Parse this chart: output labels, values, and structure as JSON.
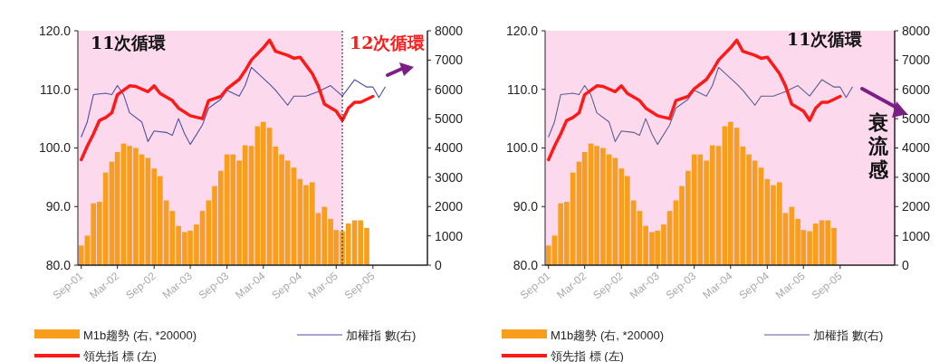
{
  "chart_data": [
    {
      "type": "bar",
      "annotations": [
        "11次循環",
        "12次循環"
      ],
      "xlim": [
        "2001-08-15",
        "2006-06"
      ],
      "xticks": [
        {
          "value": "2001-09",
          "label": "Sep-01"
        },
        {
          "value": "2002-03",
          "label": "Mar-02"
        },
        {
          "value": "2002-09",
          "label": "Sep-02"
        },
        {
          "value": "2003-03",
          "label": "Mar-03"
        },
        {
          "value": "2003-09",
          "label": "Sep-03"
        },
        {
          "value": "2004-03",
          "label": "Mar-04"
        },
        {
          "value": "2004-09",
          "label": "Sep-04"
        },
        {
          "value": "2005-03",
          "label": "Mar-05"
        },
        {
          "value": "2005-09",
          "label": "Sep-05"
        }
      ],
      "ylim": [
        80,
        120
      ],
      "yticks": [
        {
          "value": 80,
          "label": "80.0"
        },
        {
          "value": 90,
          "label": "90.0"
        },
        {
          "value": 100,
          "label": "100.0"
        },
        {
          "value": 110,
          "label": "110.0"
        },
        {
          "value": 120,
          "label": "120.0"
        }
      ],
      "y2lim": [
        0,
        8000
      ],
      "y2ticks": [
        0,
        1000,
        2000,
        3000,
        4000,
        5000,
        6000,
        7000,
        8000
      ],
      "bands": [
        {
          "axis": "x",
          "from": "2001-08-15",
          "to": "2005-04",
          "color": "#fcd9ec"
        }
      ],
      "ref_lines": [
        {
          "axis": "x",
          "value": "2005-04",
          "line_style": "dotted"
        }
      ],
      "legend": "bottom",
      "grid": false,
      "series": [
        {
          "name": "M1b趨勢 (右, *20000)",
          "axis": "y2",
          "color": "#f99e1c",
          "x": [
            "2001-09",
            "2001-10",
            "2001-11",
            "2001-12",
            "2002-01",
            "2002-02",
            "2002-03",
            "2002-04",
            "2002-05",
            "2002-06",
            "2002-07",
            "2002-08",
            "2002-09",
            "2002-10",
            "2002-11",
            "2002-12",
            "2003-01",
            "2003-02",
            "2003-03",
            "2003-04",
            "2003-05",
            "2003-06",
            "2003-07",
            "2003-08",
            "2003-09",
            "2003-10",
            "2003-11",
            "2003-12",
            "2004-01",
            "2004-02",
            "2004-03",
            "2004-04",
            "2004-05",
            "2004-06",
            "2004-07",
            "2004-08",
            "2004-09",
            "2004-10",
            "2004-11",
            "2004-12",
            "2005-01",
            "2005-02",
            "2005-03",
            "2005-04",
            "2005-05",
            "2005-06",
            "2005-07",
            "2005-08"
          ],
          "values": [
            670,
            1010,
            2110,
            2160,
            3160,
            3530,
            3860,
            4150,
            4070,
            4000,
            3780,
            3660,
            3300,
            3040,
            2210,
            1850,
            1340,
            1130,
            1180,
            1390,
            1850,
            2210,
            2700,
            3220,
            3780,
            3780,
            3570,
            4090,
            4070,
            4740,
            4890,
            4690,
            4050,
            3780,
            3570,
            3330,
            2940,
            2730,
            2830,
            1780,
            1990,
            1580,
            1200,
            1160,
            1420,
            1530,
            1530,
            1270
          ]
        },
        {
          "name": "加權指 數(右)",
          "type": "line",
          "axis": "y2",
          "color": "#4b4fa6",
          "x": [
            "2001-09",
            "2001-10",
            "2001-11",
            "2002-01",
            "2002-02",
            "2002-03",
            "2002-04",
            "2002-05",
            "2002-07",
            "2002-08",
            "2002-09",
            "2002-11",
            "2002-12",
            "2003-01",
            "2003-02",
            "2003-03",
            "2003-05",
            "2003-06",
            "2003-08",
            "2003-09",
            "2003-11",
            "2003-12",
            "2004-01",
            "2004-04",
            "2004-05",
            "2004-07",
            "2004-08",
            "2004-10",
            "2004-12",
            "2005-02",
            "2005-04",
            "2005-06",
            "2005-08",
            "2005-09",
            "2005-10",
            "2005-11"
          ],
          "values": [
            4380,
            4890,
            5820,
            5870,
            5820,
            6130,
            5820,
            5200,
            4890,
            4220,
            4580,
            4530,
            4430,
            5000,
            4480,
            4120,
            4790,
            5360,
            5660,
            5970,
            5770,
            6130,
            6750,
            6180,
            5970,
            5460,
            5770,
            5770,
            5920,
            6130,
            5770,
            6330,
            6080,
            6080,
            5720,
            6080
          ]
        },
        {
          "name": "領先指 標 (左)",
          "type": "line",
          "axis": "y",
          "color": "#ff1a1a",
          "x": [
            "2001-09",
            "2001-10",
            "2001-11",
            "2001-12",
            "2002-01",
            "2002-02",
            "2002-03",
            "2002-05",
            "2002-06",
            "2002-08",
            "2002-09",
            "2002-10",
            "2002-12",
            "2003-01",
            "2003-03",
            "2003-05",
            "2003-06",
            "2003-08",
            "2003-09",
            "2003-11",
            "2003-12",
            "2004-01",
            "2004-03",
            "2004-04",
            "2004-05",
            "2004-07",
            "2004-08",
            "2004-09",
            "2004-11",
            "2004-12",
            "2005-01",
            "2005-03",
            "2005-04",
            "2005-05",
            "2005-06",
            "2005-07",
            "2005-09"
          ],
          "values": [
            98.0,
            100.3,
            102.4,
            104.7,
            105.2,
            106.0,
            109.1,
            110.6,
            110.5,
            109.6,
            110.6,
            109.3,
            108.1,
            106.8,
            105.5,
            105.0,
            108.1,
            108.8,
            110.1,
            111.7,
            113.2,
            115.0,
            117.1,
            118.4,
            116.5,
            115.8,
            115.3,
            115.5,
            112.7,
            110.6,
            107.5,
            106.3,
            104.7,
            106.8,
            107.8,
            107.8,
            108.8
          ]
        }
      ]
    },
    {
      "type": "bar",
      "annotations": [
        "11次循環",
        "衰流感"
      ],
      "xlim": [
        "2001-08-15",
        "2006-06"
      ],
      "xticks": [
        {
          "value": "2001-09",
          "label": "Sep-01"
        },
        {
          "value": "2002-03",
          "label": "Mar-02"
        },
        {
          "value": "2002-09",
          "label": "Sep-02"
        },
        {
          "value": "2003-03",
          "label": "Mar-03"
        },
        {
          "value": "2003-09",
          "label": "Sep-03"
        },
        {
          "value": "2004-03",
          "label": "Mar-04"
        },
        {
          "value": "2004-09",
          "label": "Sep-04"
        },
        {
          "value": "2005-03",
          "label": "Mar-05"
        },
        {
          "value": "2005-09",
          "label": "Sep-05"
        }
      ],
      "ylim": [
        80,
        120
      ],
      "yticks": [
        {
          "value": 80,
          "label": "80.0"
        },
        {
          "value": 90,
          "label": "90.0"
        },
        {
          "value": 100,
          "label": "100.0"
        },
        {
          "value": 110,
          "label": "110.0"
        },
        {
          "value": 120,
          "label": "120.0"
        }
      ],
      "y2lim": [
        0,
        8000
      ],
      "y2ticks": [
        0,
        1000,
        2000,
        3000,
        4000,
        5000,
        6000,
        7000,
        8000
      ],
      "bands": [
        {
          "axis": "x",
          "from": "2001-08-15",
          "to": "2006-06",
          "color": "#fcd9ec"
        }
      ],
      "legend": "bottom",
      "grid": false,
      "series": [
        {
          "name": "M1b趨勢 (右, *20000)",
          "axis": "y2",
          "color": "#f99e1c",
          "x": [
            "2001-09",
            "2001-10",
            "2001-11",
            "2001-12",
            "2002-01",
            "2002-02",
            "2002-03",
            "2002-04",
            "2002-05",
            "2002-06",
            "2002-07",
            "2002-08",
            "2002-09",
            "2002-10",
            "2002-11",
            "2002-12",
            "2003-01",
            "2003-02",
            "2003-03",
            "2003-04",
            "2003-05",
            "2003-06",
            "2003-07",
            "2003-08",
            "2003-09",
            "2003-10",
            "2003-11",
            "2003-12",
            "2004-01",
            "2004-02",
            "2004-03",
            "2004-04",
            "2004-05",
            "2004-06",
            "2004-07",
            "2004-08",
            "2004-09",
            "2004-10",
            "2004-11",
            "2004-12",
            "2005-01",
            "2005-02",
            "2005-03",
            "2005-04",
            "2005-05",
            "2005-06",
            "2005-07",
            "2005-08"
          ],
          "values": [
            670,
            1010,
            2110,
            2160,
            3160,
            3530,
            3860,
            4150,
            4070,
            4000,
            3780,
            3660,
            3300,
            3040,
            2210,
            1850,
            1340,
            1130,
            1180,
            1390,
            1850,
            2210,
            2700,
            3220,
            3780,
            3780,
            3570,
            4090,
            4070,
            4740,
            4890,
            4690,
            4050,
            3780,
            3570,
            3330,
            2940,
            2730,
            2830,
            1780,
            1990,
            1580,
            1200,
            1160,
            1420,
            1530,
            1530,
            1270
          ]
        },
        {
          "name": "加權指 數(右)",
          "type": "line",
          "axis": "y2",
          "color": "#5a5f8c",
          "x": [
            "2001-09",
            "2001-10",
            "2001-11",
            "2002-01",
            "2002-02",
            "2002-03",
            "2002-04",
            "2002-05",
            "2002-07",
            "2002-08",
            "2002-09",
            "2002-11",
            "2002-12",
            "2003-01",
            "2003-02",
            "2003-03",
            "2003-05",
            "2003-06",
            "2003-08",
            "2003-09",
            "2003-11",
            "2003-12",
            "2004-01",
            "2004-04",
            "2004-05",
            "2004-07",
            "2004-08",
            "2004-10",
            "2004-12",
            "2005-02",
            "2005-04",
            "2005-06",
            "2005-08",
            "2005-09",
            "2005-10",
            "2005-11"
          ],
          "values": [
            4380,
            4890,
            5820,
            5870,
            5820,
            6130,
            5820,
            5200,
            4890,
            4220,
            4580,
            4530,
            4430,
            5000,
            4480,
            4120,
            4790,
            5360,
            5660,
            5970,
            5770,
            6130,
            6750,
            6180,
            5970,
            5460,
            5770,
            5770,
            5920,
            6130,
            5770,
            6330,
            6080,
            6080,
            5720,
            6080
          ]
        },
        {
          "name": "領先指 標 (左)",
          "type": "line",
          "axis": "y",
          "color": "#ff1a1a",
          "x": [
            "2001-09",
            "2001-10",
            "2001-11",
            "2001-12",
            "2002-01",
            "2002-02",
            "2002-03",
            "2002-05",
            "2002-06",
            "2002-08",
            "2002-09",
            "2002-10",
            "2002-12",
            "2003-01",
            "2003-03",
            "2003-05",
            "2003-06",
            "2003-08",
            "2003-09",
            "2003-11",
            "2003-12",
            "2004-01",
            "2004-03",
            "2004-04",
            "2004-05",
            "2004-07",
            "2004-08",
            "2004-09",
            "2004-11",
            "2004-12",
            "2005-01",
            "2005-03",
            "2005-04",
            "2005-05",
            "2005-06",
            "2005-07",
            "2005-09"
          ],
          "values": [
            98.0,
            100.3,
            102.4,
            104.7,
            105.2,
            106.0,
            109.1,
            110.6,
            110.5,
            109.6,
            110.6,
            109.3,
            108.1,
            106.8,
            105.5,
            105.0,
            108.1,
            108.8,
            110.1,
            111.7,
            113.2,
            115.0,
            117.1,
            118.4,
            116.5,
            115.8,
            115.3,
            115.5,
            112.7,
            110.6,
            107.5,
            106.3,
            104.7,
            106.8,
            107.8,
            107.8,
            108.8
          ]
        }
      ]
    }
  ]
}
